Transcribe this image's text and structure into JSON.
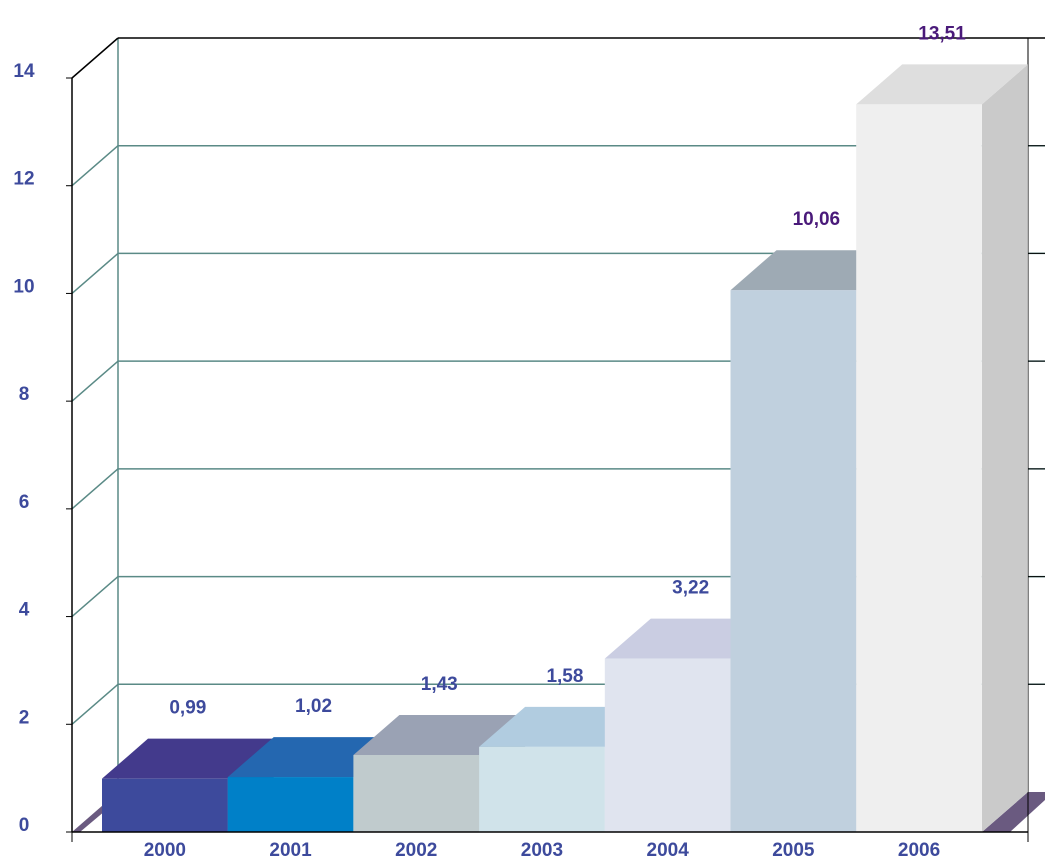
{
  "chart_data": {
    "type": "bar3d",
    "categories": [
      "2000",
      "2001",
      "2002",
      "2003",
      "2004",
      "2005",
      "2006"
    ],
    "values": [
      0.99,
      1.02,
      1.43,
      1.58,
      3.22,
      10.06,
      13.51
    ],
    "value_labels": [
      "0,99",
      "1,02",
      "1,43",
      "1,58",
      "3,22",
      "10,06",
      "13,51"
    ],
    "value_label_colors": [
      "#3d4a9c",
      "#3d4a9c",
      "#3d4a9c",
      "#3d4a9c",
      "#3d4a9c",
      "#4a1a7a",
      "#4a1a7a"
    ],
    "colors": [
      "#3d4a9c",
      "#0080c8",
      "#c0cbcd",
      "#d0e3ea",
      "#e0e4ef",
      "#c0d0de",
      "#efefef"
    ],
    "top_colors": [
      "#433a8c",
      "#2467b0",
      "#9aa2b4",
      "#b1cce0",
      "#cacde2",
      "#9eaab4",
      "#dedede"
    ],
    "side_colors": [
      "#2f3a80",
      "#006aa8",
      "#a8b2b6",
      "#b8ccd6",
      "#c8ccdc",
      "#a8b8c8",
      "#cacaca"
    ],
    "ylim": [
      0,
      14
    ],
    "yticks": [
      0,
      2,
      4,
      6,
      8,
      10,
      12,
      14
    ],
    "grid": true
  }
}
